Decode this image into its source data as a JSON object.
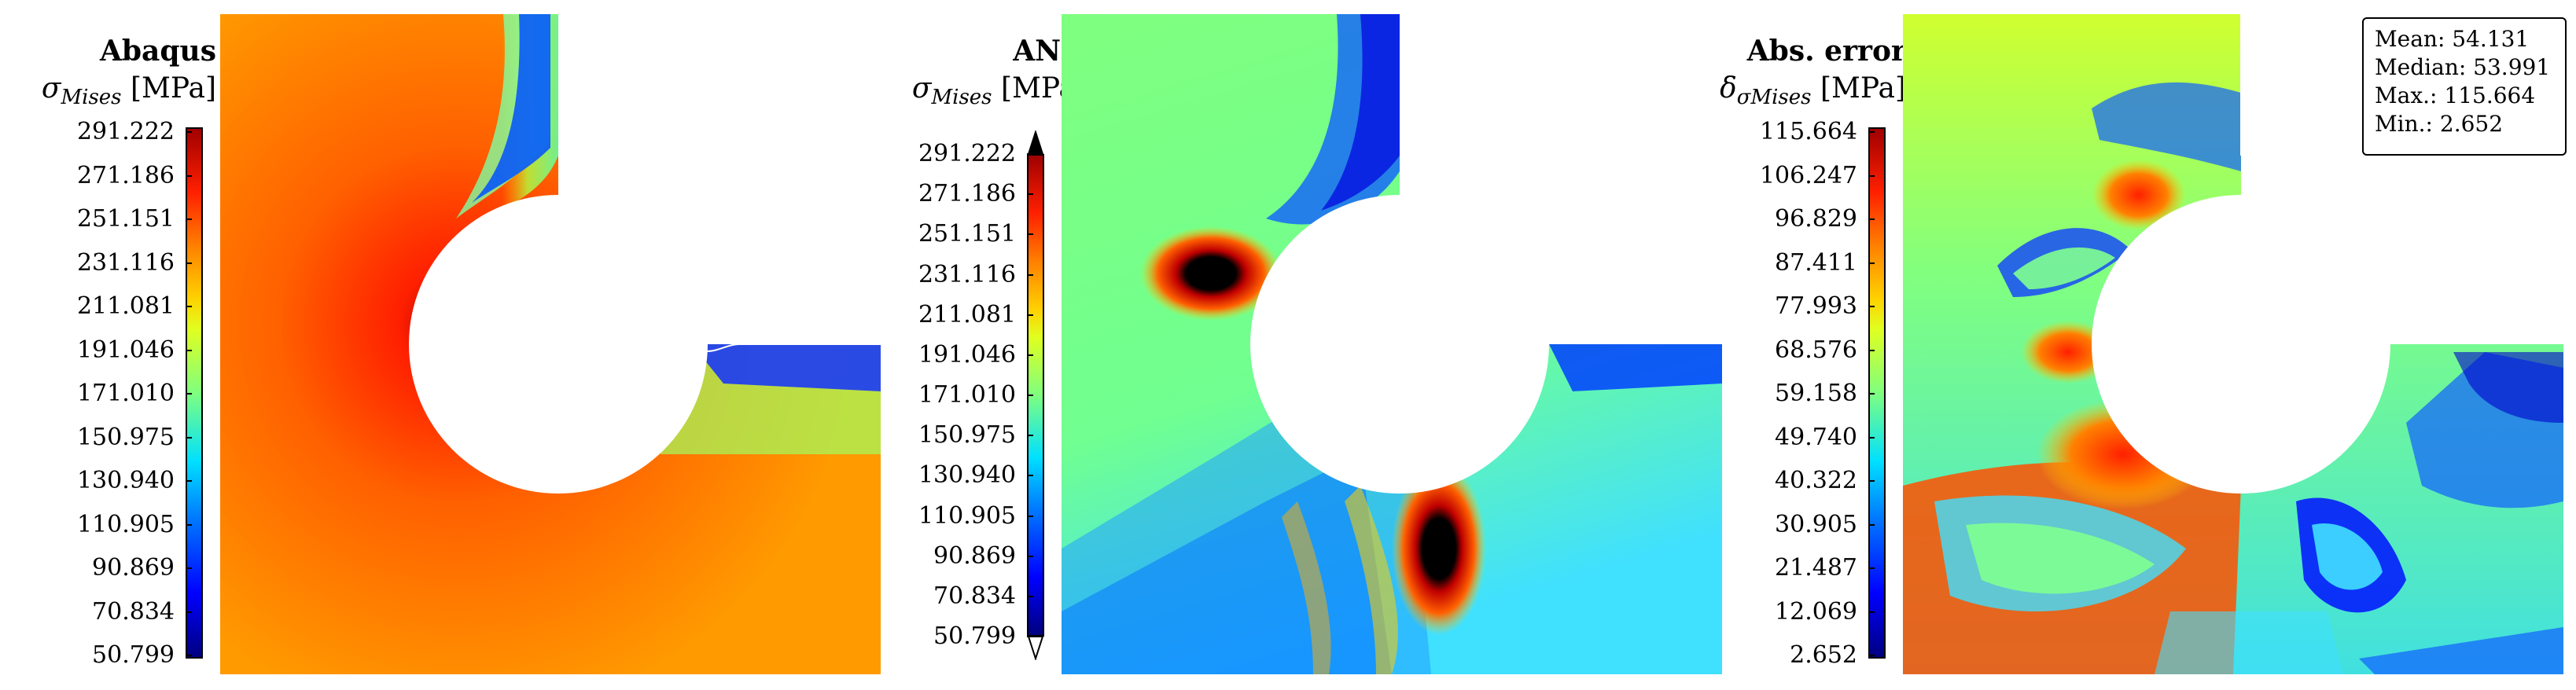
{
  "panels": [
    {
      "title": "Abaqus",
      "symbol": "σ",
      "subscript": "Mises",
      "unit": "[MPa]",
      "ticks": [
        "291.222",
        "271.186",
        "251.151",
        "231.116",
        "211.081",
        "191.046",
        "171.010",
        "150.975",
        "130.940",
        "110.905",
        "90.869",
        "70.834",
        "50.799"
      ]
    },
    {
      "title": "ANN",
      "symbol": "σ",
      "subscript": "Mises",
      "unit": "[MPa]",
      "ticks": [
        "291.222",
        "271.186",
        "251.151",
        "231.116",
        "211.081",
        "191.046",
        "171.010",
        "150.975",
        "130.940",
        "110.905",
        "90.869",
        "70.834",
        "50.799"
      ]
    },
    {
      "title": "Abs. error",
      "symbol": "δ",
      "subscript": "σMises",
      "unit": "[MPa]",
      "ticks": [
        "115.664",
        "106.247",
        "96.829",
        "87.411",
        "77.993",
        "68.576",
        "59.158",
        "49.740",
        "40.322",
        "30.905",
        "21.487",
        "12.069",
        "2.652"
      ]
    }
  ],
  "stats": {
    "mean": "Mean: 54.131",
    "median": "Median: 53.991",
    "max": "Max.: 115.664",
    "min": "Min.: 2.652"
  },
  "colors": {
    "colormap": [
      "#00007f",
      "#0000ff",
      "#0080ff",
      "#00e0ff",
      "#7fff7f",
      "#e0ff20",
      "#ffd000",
      "#ff7f00",
      "#ff2000",
      "#a00000"
    ],
    "overflow": "#000000"
  }
}
